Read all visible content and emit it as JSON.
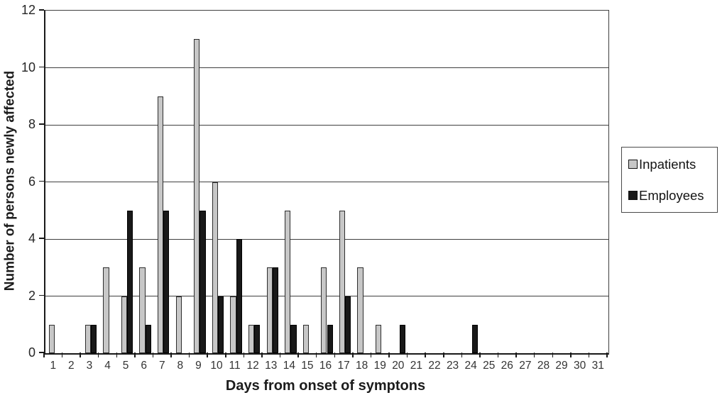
{
  "chart_data": {
    "type": "bar",
    "title": "",
    "xlabel": "Days from onset of symptons",
    "ylabel": "Number of persons newly affected",
    "categories": [
      "1",
      "2",
      "3",
      "4",
      "5",
      "6",
      "7",
      "8",
      "9",
      "10",
      "11",
      "12",
      "13",
      "14",
      "15",
      "16",
      "17",
      "18",
      "19",
      "20",
      "21",
      "22",
      "23",
      "24",
      "25",
      "26",
      "27",
      "28",
      "29",
      "30",
      "31"
    ],
    "series": [
      {
        "name": "Inpatients",
        "color": "#c7c7c7",
        "border_color": "#2e2e2e",
        "values": [
          1,
          0,
          1,
          3,
          2,
          3,
          9,
          2,
          11,
          6,
          2,
          1,
          3,
          5,
          1,
          3,
          5,
          3,
          1,
          0,
          0,
          0,
          0,
          0,
          0,
          0,
          0,
          0,
          0,
          0,
          0
        ]
      },
      {
        "name": "Employees",
        "color": "#191919",
        "border_color": "#000000",
        "values": [
          0,
          0,
          1,
          0,
          5,
          1,
          5,
          0,
          5,
          2,
          4,
          1,
          3,
          1,
          0,
          1,
          2,
          0,
          0,
          1,
          0,
          0,
          0,
          1,
          0,
          0,
          0,
          0,
          0,
          0,
          0
        ]
      }
    ],
    "ylim": [
      0,
      12
    ],
    "yticks": [
      0,
      2,
      4,
      6,
      8,
      10,
      12
    ],
    "grid": "horizontal",
    "legend_position": "right",
    "background_color": "#ffffff",
    "gridline_color": "#3f3f3f",
    "axis_color": "#191919"
  }
}
